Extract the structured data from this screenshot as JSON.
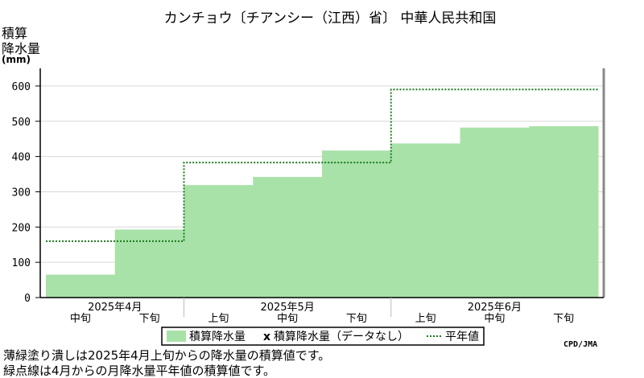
{
  "chart_data": {
    "type": "area",
    "title": "カンチョウ〔チアンシー（江西）省〕 中華人民共和国",
    "ylabel_lines": [
      "積算",
      "降水量",
      "(mm)"
    ],
    "ylim": [
      0,
      650
    ],
    "yticks": [
      0,
      100,
      200,
      300,
      400,
      500,
      600
    ],
    "grid": true,
    "periods": [
      "2025年4月中旬",
      "2025年4月下旬",
      "2025年5月上旬",
      "2025年5月中旬",
      "2025年5月下旬",
      "2025年6月上旬",
      "2025年6月中旬",
      "2025年6月下旬"
    ],
    "x_labels": [
      {
        "month": "2025年4月",
        "dekads": [
          "中旬",
          "下旬"
        ]
      },
      {
        "month": "2025年5月",
        "dekads": [
          "上旬",
          "中旬",
          "下旬"
        ]
      },
      {
        "month": "2025年6月",
        "dekads": [
          "上旬",
          "中旬",
          "下旬"
        ]
      }
    ],
    "series": [
      {
        "name": "積算降水量",
        "style": "filled-step",
        "color": "#a8e2a8",
        "values": [
          65,
          193,
          319,
          342,
          417,
          437,
          482,
          486
        ]
      },
      {
        "name": "積算降水量（データなし）",
        "style": "marker",
        "marker": "x",
        "values": []
      },
      {
        "name": "平年値",
        "style": "dotted-step",
        "color": "#1a7a1a",
        "values": [
          160,
          160,
          383,
          383,
          383,
          590,
          590,
          590
        ]
      }
    ],
    "legend_position": "bottom",
    "notes": [
      "薄緑塗り潰しは2025年4月上旬からの降水量の積算値です。",
      "緑点線は4月からの月降水量平年値の積算値です。"
    ],
    "credit": "CPD/JMA"
  }
}
